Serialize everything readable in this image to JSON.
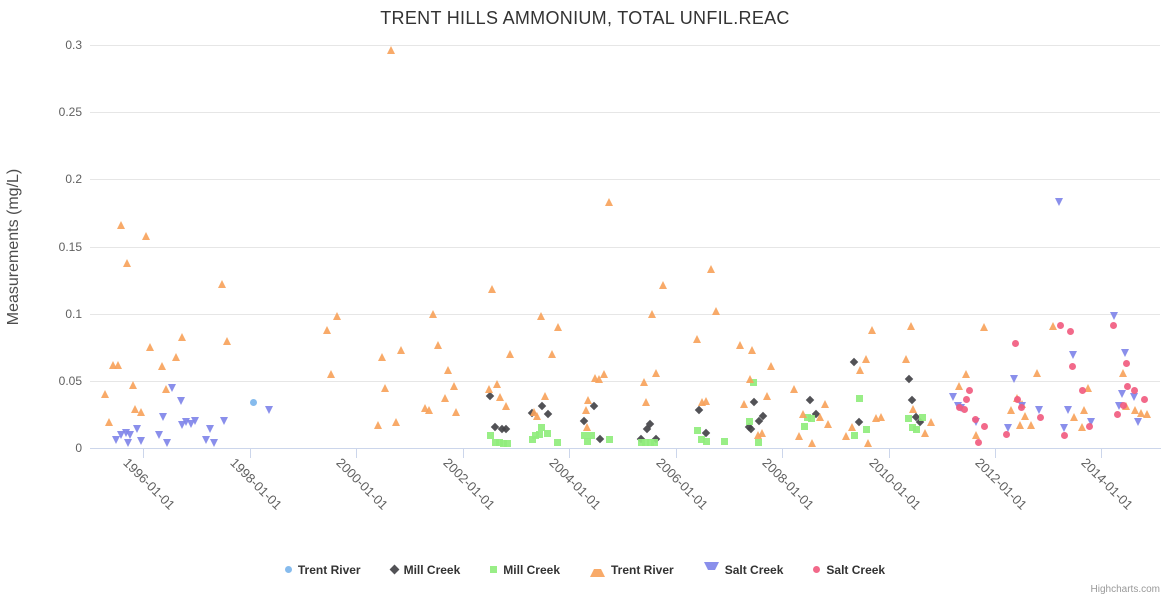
{
  "chart": {
    "title": "TRENT HILLS AMMONIUM, TOTAL UNFIL.REAC",
    "credits": "Highcharts.com"
  },
  "chart_data": {
    "type": "scatter",
    "title": "TRENT HILLS AMMONIUM, TOTAL UNFIL.REAC",
    "xlabel": "",
    "ylabel": "Measurements (mg/L)",
    "x_unit": "decimal_year",
    "xlim": [
      1995.0,
      2015.1
    ],
    "ylim": [
      0,
      0.3
    ],
    "grid": true,
    "legend_position": "bottom",
    "xticks": [
      1996,
      1998,
      2000,
      2002,
      2004,
      2006,
      2008,
      2010,
      2012,
      2014
    ],
    "xtick_labels": [
      "1996-01-01",
      "1998-01-01",
      "2000-01-01",
      "2002-01-01",
      "2004-01-01",
      "2006-01-01",
      "2008-01-01",
      "2010-01-01",
      "2012-01-01",
      "2014-01-01"
    ],
    "yticks": [
      0,
      0.05,
      0.1,
      0.15,
      0.2,
      0.25,
      0.3
    ],
    "ytick_labels": [
      "0",
      "0.05",
      "0.1",
      "0.15",
      "0.2",
      "0.25",
      "0.3"
    ],
    "series": [
      {
        "name": "Trent River",
        "marker": "circle",
        "color": "#7cb5ec",
        "points": [
          [
            1998.07,
            0.034
          ]
        ]
      },
      {
        "name": "Mill Creek",
        "marker": "diamond",
        "color": "#434348",
        "points": [
          [
            2002.52,
            0.039
          ],
          [
            2002.6,
            0.016
          ],
          [
            2002.74,
            0.014
          ],
          [
            2002.81,
            0.014
          ],
          [
            2003.3,
            0.026
          ],
          [
            2003.49,
            0.031
          ],
          [
            2003.61,
            0.025
          ],
          [
            2004.28,
            0.02
          ],
          [
            2004.46,
            0.031
          ],
          [
            2004.58,
            0.007
          ],
          [
            2005.35,
            0.007
          ],
          [
            2005.47,
            0.014
          ],
          [
            2005.52,
            0.018
          ],
          [
            2005.63,
            0.007
          ],
          [
            2006.44,
            0.028
          ],
          [
            2006.57,
            0.011
          ],
          [
            2007.38,
            0.016
          ],
          [
            2007.42,
            0.014
          ],
          [
            2007.47,
            0.034
          ],
          [
            2007.57,
            0.02
          ],
          [
            2007.65,
            0.024
          ],
          [
            2008.53,
            0.036
          ],
          [
            2008.64,
            0.025
          ],
          [
            2009.35,
            0.064
          ],
          [
            2009.45,
            0.019
          ],
          [
            2010.38,
            0.051
          ],
          [
            2010.45,
            0.036
          ],
          [
            2010.52,
            0.023
          ],
          [
            2010.6,
            0.019
          ]
        ]
      },
      {
        "name": "Mill Creek",
        "marker": "square",
        "color": "#90ed7d",
        "points": [
          [
            2002.52,
            0.009
          ],
          [
            2002.61,
            0.004
          ],
          [
            2002.69,
            0.004
          ],
          [
            2002.76,
            0.003
          ],
          [
            2002.84,
            0.003
          ],
          [
            2003.32,
            0.006
          ],
          [
            2003.36,
            0.009
          ],
          [
            2003.44,
            0.01
          ],
          [
            2003.48,
            0.015
          ],
          [
            2003.6,
            0.011
          ],
          [
            2003.78,
            0.004
          ],
          [
            2004.29,
            0.009
          ],
          [
            2004.35,
            0.005
          ],
          [
            2004.42,
            0.009
          ],
          [
            2004.75,
            0.006
          ],
          [
            2005.36,
            0.004
          ],
          [
            2005.44,
            0.004
          ],
          [
            2005.53,
            0.004
          ],
          [
            2005.61,
            0.004
          ],
          [
            2006.42,
            0.013
          ],
          [
            2006.48,
            0.006
          ],
          [
            2006.58,
            0.005
          ],
          [
            2006.91,
            0.005
          ],
          [
            2007.39,
            0.02
          ],
          [
            2007.47,
            0.049
          ],
          [
            2007.55,
            0.004
          ],
          [
            2008.42,
            0.016
          ],
          [
            2008.47,
            0.023
          ],
          [
            2008.55,
            0.022
          ],
          [
            2009.37,
            0.009
          ],
          [
            2009.45,
            0.037
          ],
          [
            2009.59,
            0.014
          ],
          [
            2010.37,
            0.022
          ],
          [
            2010.45,
            0.015
          ],
          [
            2010.52,
            0.014
          ],
          [
            2010.63,
            0.023
          ]
        ]
      },
      {
        "name": "Trent River",
        "marker": "triangle",
        "color": "#f7a35c",
        "points": [
          [
            1995.3,
            0.04
          ],
          [
            1995.36,
            0.019
          ],
          [
            1995.44,
            0.062
          ],
          [
            1995.53,
            0.062
          ],
          [
            1995.6,
            0.166
          ],
          [
            1995.71,
            0.138
          ],
          [
            1995.81,
            0.047
          ],
          [
            1995.86,
            0.029
          ],
          [
            1995.96,
            0.027
          ],
          [
            1996.06,
            0.158
          ],
          [
            1996.13,
            0.075
          ],
          [
            1996.36,
            0.061
          ],
          [
            1996.43,
            0.044
          ],
          [
            1996.63,
            0.068
          ],
          [
            1996.74,
            0.083
          ],
          [
            1997.48,
            0.122
          ],
          [
            1997.59,
            0.08
          ],
          [
            1999.47,
            0.088
          ],
          [
            1999.54,
            0.055
          ],
          [
            1999.64,
            0.098
          ],
          [
            2000.42,
            0.017
          ],
          [
            2000.49,
            0.068
          ],
          [
            2000.56,
            0.045
          ],
          [
            2000.66,
            0.296
          ],
          [
            2000.76,
            0.019
          ],
          [
            2000.85,
            0.073
          ],
          [
            2001.3,
            0.03
          ],
          [
            2001.38,
            0.028
          ],
          [
            2001.46,
            0.1
          ],
          [
            2001.55,
            0.077
          ],
          [
            2001.67,
            0.037
          ],
          [
            2001.74,
            0.058
          ],
          [
            2001.84,
            0.046
          ],
          [
            2001.89,
            0.027
          ],
          [
            2002.5,
            0.044
          ],
          [
            2002.56,
            0.118
          ],
          [
            2002.66,
            0.048
          ],
          [
            2002.72,
            0.038
          ],
          [
            2002.82,
            0.031
          ],
          [
            2002.9,
            0.07
          ],
          [
            2003.35,
            0.027
          ],
          [
            2003.4,
            0.024
          ],
          [
            2003.48,
            0.098
          ],
          [
            2003.56,
            0.039
          ],
          [
            2003.69,
            0.07
          ],
          [
            2003.8,
            0.09
          ],
          [
            2004.33,
            0.028
          ],
          [
            2004.34,
            0.016
          ],
          [
            2004.36,
            0.036
          ],
          [
            2004.5,
            0.052
          ],
          [
            2004.58,
            0.051
          ],
          [
            2004.67,
            0.055
          ],
          [
            2004.76,
            0.183
          ],
          [
            2005.42,
            0.049
          ],
          [
            2005.46,
            0.034
          ],
          [
            2005.57,
            0.1
          ],
          [
            2005.65,
            0.056
          ],
          [
            2005.78,
            0.121
          ],
          [
            2006.42,
            0.081
          ],
          [
            2006.5,
            0.034
          ],
          [
            2006.58,
            0.035
          ],
          [
            2006.68,
            0.133
          ],
          [
            2006.77,
            0.102
          ],
          [
            2007.22,
            0.077
          ],
          [
            2007.3,
            0.033
          ],
          [
            2007.4,
            0.051
          ],
          [
            2007.45,
            0.073
          ],
          [
            2007.56,
            0.01
          ],
          [
            2007.64,
            0.011
          ],
          [
            2007.73,
            0.039
          ],
          [
            2007.81,
            0.061
          ],
          [
            2008.24,
            0.044
          ],
          [
            2008.33,
            0.009
          ],
          [
            2008.41,
            0.025
          ],
          [
            2008.58,
            0.004
          ],
          [
            2008.73,
            0.023
          ],
          [
            2008.81,
            0.033
          ],
          [
            2008.88,
            0.018
          ],
          [
            2009.21,
            0.009
          ],
          [
            2009.33,
            0.016
          ],
          [
            2009.48,
            0.058
          ],
          [
            2009.58,
            0.066
          ],
          [
            2009.62,
            0.004
          ],
          [
            2009.69,
            0.088
          ],
          [
            2009.78,
            0.022
          ],
          [
            2009.86,
            0.023
          ],
          [
            2010.33,
            0.066
          ],
          [
            2010.43,
            0.091
          ],
          [
            2010.47,
            0.029
          ],
          [
            2010.69,
            0.011
          ],
          [
            2010.8,
            0.019
          ],
          [
            2011.34,
            0.046
          ],
          [
            2011.47,
            0.055
          ],
          [
            2011.66,
            0.01
          ],
          [
            2011.81,
            0.09
          ],
          [
            2012.31,
            0.028
          ],
          [
            2012.42,
            0.037
          ],
          [
            2012.48,
            0.017
          ],
          [
            2012.52,
            0.033
          ],
          [
            2012.58,
            0.024
          ],
          [
            2012.69,
            0.017
          ],
          [
            2012.79,
            0.056
          ],
          [
            2013.09,
            0.091
          ],
          [
            2013.5,
            0.023
          ],
          [
            2013.65,
            0.016
          ],
          [
            2013.69,
            0.028
          ],
          [
            2013.75,
            0.045
          ],
          [
            2014.42,
            0.056
          ],
          [
            2014.48,
            0.031
          ],
          [
            2014.64,
            0.028
          ],
          [
            2014.75,
            0.026
          ],
          [
            2014.86,
            0.025
          ]
        ]
      },
      {
        "name": "Salt Creek",
        "marker": "triangle-down",
        "color": "#8085e9",
        "points": [
          [
            1995.5,
            0.006
          ],
          [
            1995.59,
            0.01
          ],
          [
            1995.68,
            0.011
          ],
          [
            1995.73,
            0.004
          ],
          [
            1995.77,
            0.01
          ],
          [
            1995.89,
            0.014
          ],
          [
            1995.96,
            0.005
          ],
          [
            1996.3,
            0.01
          ],
          [
            1996.39,
            0.023
          ],
          [
            1996.45,
            0.004
          ],
          [
            1996.55,
            0.045
          ],
          [
            1996.71,
            0.035
          ],
          [
            1996.74,
            0.017
          ],
          [
            1996.82,
            0.019
          ],
          [
            1996.91,
            0.018
          ],
          [
            1996.98,
            0.02
          ],
          [
            1997.19,
            0.006
          ],
          [
            1997.27,
            0.014
          ],
          [
            1997.33,
            0.004
          ],
          [
            1997.52,
            0.02
          ],
          [
            1998.37,
            0.028
          ],
          [
            2011.22,
            0.038
          ],
          [
            2011.31,
            0.031
          ],
          [
            2011.38,
            0.03
          ],
          [
            2011.65,
            0.019
          ],
          [
            2012.25,
            0.015
          ],
          [
            2012.36,
            0.051
          ],
          [
            2012.51,
            0.031
          ],
          [
            2012.84,
            0.028
          ],
          [
            2013.21,
            0.183
          ],
          [
            2013.31,
            0.015
          ],
          [
            2013.39,
            0.028
          ],
          [
            2013.47,
            0.069
          ],
          [
            2013.81,
            0.019
          ],
          [
            2014.25,
            0.098
          ],
          [
            2014.33,
            0.031
          ],
          [
            2014.39,
            0.04
          ],
          [
            2014.46,
            0.071
          ],
          [
            2014.62,
            0.038
          ],
          [
            2014.7,
            0.019
          ]
        ]
      },
      {
        "name": "Salt Creek",
        "marker": "circle",
        "color": "#f15c80",
        "points": [
          [
            2011.33,
            0.03
          ],
          [
            2011.42,
            0.029
          ],
          [
            2011.46,
            0.036
          ],
          [
            2011.52,
            0.043
          ],
          [
            2011.64,
            0.021
          ],
          [
            2011.69,
            0.004
          ],
          [
            2011.81,
            0.016
          ],
          [
            2012.21,
            0.01
          ],
          [
            2012.39,
            0.078
          ],
          [
            2012.42,
            0.036
          ],
          [
            2012.49,
            0.03
          ],
          [
            2012.85,
            0.023
          ],
          [
            2013.23,
            0.091
          ],
          [
            2013.3,
            0.009
          ],
          [
            2013.41,
            0.087
          ],
          [
            2013.46,
            0.061
          ],
          [
            2013.65,
            0.043
          ],
          [
            2013.78,
            0.016
          ],
          [
            2014.23,
            0.091
          ],
          [
            2014.31,
            0.025
          ],
          [
            2014.41,
            0.032
          ],
          [
            2014.47,
            0.063
          ],
          [
            2014.49,
            0.046
          ],
          [
            2014.62,
            0.043
          ],
          [
            2014.8,
            0.036
          ]
        ]
      }
    ]
  }
}
